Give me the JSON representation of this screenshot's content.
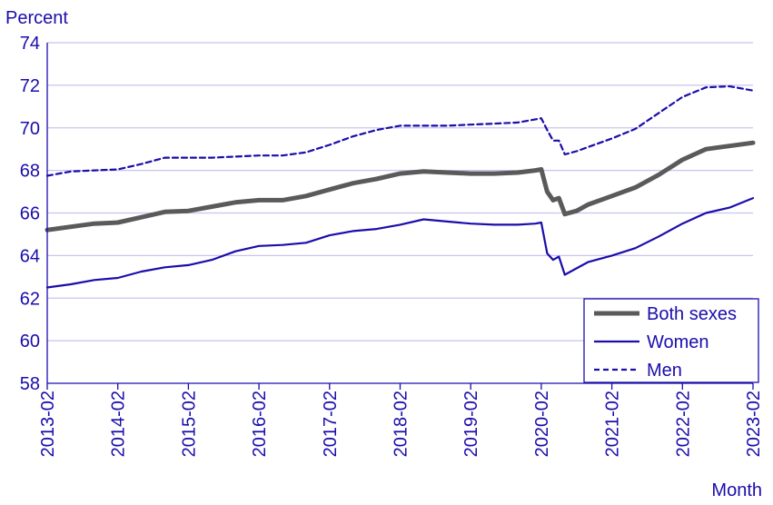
{
  "colors": {
    "axis_text": "#1a0dab",
    "grid": "#c8c4ec",
    "axis_line": "#1a0dab",
    "both": "#5a5a5a",
    "women": "#1a0dab",
    "men": "#1a0dab"
  },
  "chart_data": {
    "type": "line",
    "ylabel": "Percent",
    "xlabel": "Month",
    "ylim": [
      58,
      74
    ],
    "yticks": [
      58,
      60,
      62,
      64,
      66,
      68,
      70,
      72,
      74
    ],
    "xlim": [
      "2013-02",
      "2023-02"
    ],
    "xticks": [
      "2013-02",
      "2014-02",
      "2015-02",
      "2016-02",
      "2017-02",
      "2018-02",
      "2019-02",
      "2020-02",
      "2021-02",
      "2022-02",
      "2023-02"
    ],
    "grid": "horizontal",
    "legend_position": "bottom-right",
    "series": [
      {
        "key": "both",
        "name": "Both sexes",
        "style": "thick",
        "points": [
          [
            "2013-02",
            65.2
          ],
          [
            "2013-06",
            65.35
          ],
          [
            "2013-10",
            65.5
          ],
          [
            "2014-02",
            65.55
          ],
          [
            "2014-06",
            65.8
          ],
          [
            "2014-10",
            66.05
          ],
          [
            "2015-02",
            66.1
          ],
          [
            "2015-06",
            66.3
          ],
          [
            "2015-10",
            66.5
          ],
          [
            "2016-02",
            66.6
          ],
          [
            "2016-06",
            66.6
          ],
          [
            "2016-10",
            66.8
          ],
          [
            "2017-02",
            67.1
          ],
          [
            "2017-06",
            67.4
          ],
          [
            "2017-10",
            67.6
          ],
          [
            "2018-02",
            67.85
          ],
          [
            "2018-06",
            67.95
          ],
          [
            "2018-10",
            67.9
          ],
          [
            "2019-02",
            67.85
          ],
          [
            "2019-06",
            67.85
          ],
          [
            "2019-10",
            67.9
          ],
          [
            "2020-01",
            68.0
          ],
          [
            "2020-02",
            68.05
          ],
          [
            "2020-03",
            67.0
          ],
          [
            "2020-04",
            66.6
          ],
          [
            "2020-05",
            66.7
          ],
          [
            "2020-06",
            65.95
          ],
          [
            "2020-08",
            66.1
          ],
          [
            "2020-10",
            66.4
          ],
          [
            "2021-02",
            66.8
          ],
          [
            "2021-06",
            67.2
          ],
          [
            "2021-10",
            67.8
          ],
          [
            "2022-02",
            68.5
          ],
          [
            "2022-06",
            69.0
          ],
          [
            "2022-10",
            69.15
          ],
          [
            "2023-02",
            69.3
          ]
        ]
      },
      {
        "key": "women",
        "name": "Women",
        "style": "solid",
        "points": [
          [
            "2013-02",
            62.5
          ],
          [
            "2013-06",
            62.65
          ],
          [
            "2013-10",
            62.85
          ],
          [
            "2014-02",
            62.95
          ],
          [
            "2014-06",
            63.25
          ],
          [
            "2014-10",
            63.45
          ],
          [
            "2015-02",
            63.55
          ],
          [
            "2015-06",
            63.8
          ],
          [
            "2015-10",
            64.2
          ],
          [
            "2016-02",
            64.45
          ],
          [
            "2016-06",
            64.5
          ],
          [
            "2016-10",
            64.6
          ],
          [
            "2017-02",
            64.95
          ],
          [
            "2017-06",
            65.15
          ],
          [
            "2017-10",
            65.25
          ],
          [
            "2018-02",
            65.45
          ],
          [
            "2018-06",
            65.7
          ],
          [
            "2018-10",
            65.6
          ],
          [
            "2019-02",
            65.5
          ],
          [
            "2019-06",
            65.45
          ],
          [
            "2019-10",
            65.45
          ],
          [
            "2020-01",
            65.5
          ],
          [
            "2020-02",
            65.55
          ],
          [
            "2020-03",
            64.1
          ],
          [
            "2020-04",
            63.8
          ],
          [
            "2020-05",
            63.95
          ],
          [
            "2020-06",
            63.1
          ],
          [
            "2020-08",
            63.4
          ],
          [
            "2020-10",
            63.7
          ],
          [
            "2021-02",
            64.0
          ],
          [
            "2021-06",
            64.35
          ],
          [
            "2021-10",
            64.9
          ],
          [
            "2022-02",
            65.5
          ],
          [
            "2022-06",
            66.0
          ],
          [
            "2022-10",
            66.25
          ],
          [
            "2023-02",
            66.7
          ]
        ]
      },
      {
        "key": "men",
        "name": "Men",
        "style": "dashed",
        "points": [
          [
            "2013-02",
            67.75
          ],
          [
            "2013-06",
            67.95
          ],
          [
            "2013-10",
            68.0
          ],
          [
            "2014-02",
            68.05
          ],
          [
            "2014-06",
            68.3
          ],
          [
            "2014-10",
            68.6
          ],
          [
            "2015-02",
            68.6
          ],
          [
            "2015-06",
            68.6
          ],
          [
            "2015-10",
            68.65
          ],
          [
            "2016-02",
            68.7
          ],
          [
            "2016-06",
            68.7
          ],
          [
            "2016-10",
            68.85
          ],
          [
            "2017-02",
            69.2
          ],
          [
            "2017-06",
            69.6
          ],
          [
            "2017-10",
            69.9
          ],
          [
            "2018-02",
            70.1
          ],
          [
            "2018-06",
            70.1
          ],
          [
            "2018-10",
            70.1
          ],
          [
            "2019-02",
            70.15
          ],
          [
            "2019-06",
            70.2
          ],
          [
            "2019-10",
            70.25
          ],
          [
            "2020-01",
            70.4
          ],
          [
            "2020-02",
            70.45
          ],
          [
            "2020-03",
            69.9
          ],
          [
            "2020-04",
            69.4
          ],
          [
            "2020-05",
            69.4
          ],
          [
            "2020-06",
            68.75
          ],
          [
            "2020-08",
            68.9
          ],
          [
            "2020-10",
            69.1
          ],
          [
            "2021-02",
            69.5
          ],
          [
            "2021-06",
            69.95
          ],
          [
            "2021-10",
            70.7
          ],
          [
            "2022-02",
            71.45
          ],
          [
            "2022-06",
            71.9
          ],
          [
            "2022-10",
            71.95
          ],
          [
            "2023-02",
            71.75
          ]
        ]
      }
    ]
  }
}
